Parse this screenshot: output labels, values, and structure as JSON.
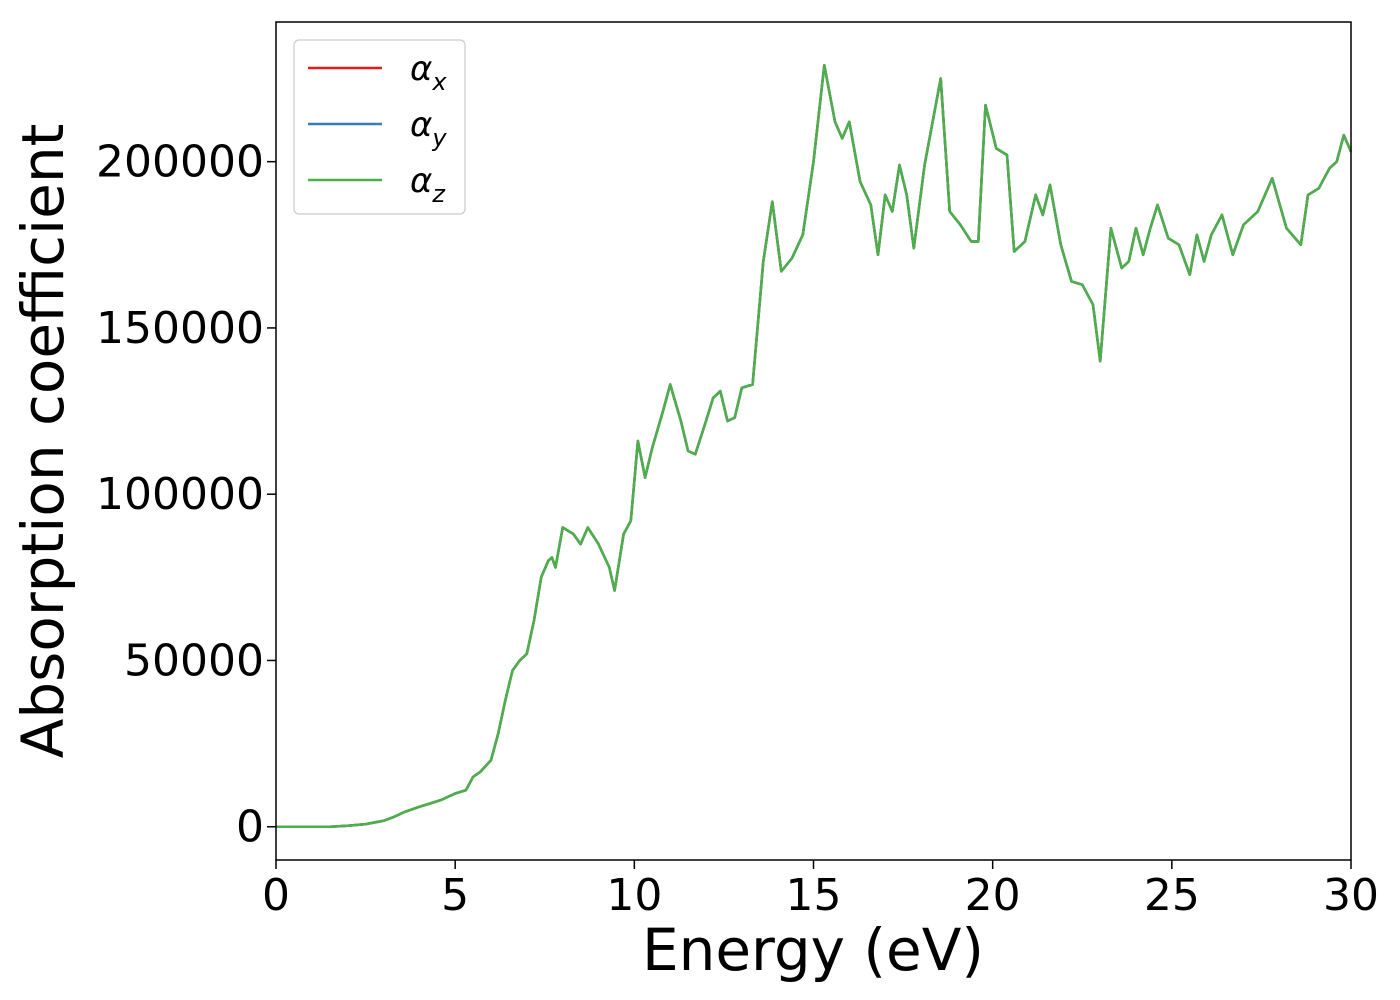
{
  "chart_data": {
    "type": "line",
    "title": "",
    "xlabel": "Energy (eV)",
    "ylabel": "Absorption coefficient",
    "xlim": [
      0,
      30
    ],
    "ylim": [
      -10000,
      242000
    ],
    "xticks": [
      0,
      5,
      10,
      15,
      20,
      25,
      30
    ],
    "yticks": [
      0,
      50000,
      100000,
      150000,
      200000
    ],
    "grid": false,
    "legend_position": "top-left",
    "series": [
      {
        "name": "α",
        "subscript": "x",
        "color": "#e41a1c"
      },
      {
        "name": "α",
        "subscript": "y",
        "color": "#377eb8"
      },
      {
        "name": "α",
        "subscript": "z",
        "color": "#4daf4a"
      }
    ],
    "x": [
      0,
      0.5,
      1,
      1.5,
      2,
      2.5,
      3,
      3.3,
      3.6,
      4,
      4.3,
      4.6,
      5,
      5.3,
      5.5,
      5.7,
      6,
      6.2,
      6.4,
      6.6,
      6.8,
      6.9,
      7,
      7.2,
      7.4,
      7.6,
      7.7,
      7.8,
      8,
      8.3,
      8.5,
      8.7,
      9,
      9.3,
      9.45,
      9.7,
      9.9,
      10.1,
      10.3,
      10.5,
      10.8,
      11,
      11.3,
      11.5,
      11.7,
      12,
      12.2,
      12.4,
      12.6,
      12.8,
      13,
      13.3,
      13.6,
      13.85,
      14.1,
      14.4,
      14.7,
      15,
      15.3,
      15.6,
      15.8,
      16,
      16.3,
      16.6,
      16.8,
      17,
      17.2,
      17.4,
      17.6,
      17.8,
      18.1,
      18.55,
      18.8,
      19.1,
      19.4,
      19.6,
      19.8,
      20.1,
      20.4,
      20.6,
      20.9,
      21.2,
      21.4,
      21.6,
      21.9,
      22.2,
      22.5,
      22.8,
      23,
      23.3,
      23.6,
      23.8,
      24,
      24.2,
      24.4,
      24.6,
      24.9,
      25.2,
      25.5,
      25.7,
      25.9,
      26.1,
      26.4,
      26.7,
      27,
      27.4,
      27.8,
      28.2,
      28.6,
      28.8,
      29.1,
      29.4,
      29.6,
      29.8,
      30
    ],
    "y": [
      0,
      0,
      0,
      0,
      300,
      800,
      1800,
      3000,
      4500,
      6000,
      7000,
      8000,
      10000,
      11000,
      15000,
      16500,
      20000,
      28000,
      38000,
      47000,
      50000,
      51000,
      52000,
      62000,
      75000,
      80000,
      81000,
      78000,
      90000,
      88000,
      85000,
      90000,
      85000,
      78000,
      71000,
      88000,
      92000,
      116000,
      105000,
      114000,
      125000,
      133000,
      122000,
      113000,
      112000,
      122000,
      129000,
      131000,
      122000,
      123000,
      132000,
      133000,
      170000,
      188000,
      167000,
      171000,
      178000,
      200000,
      229000,
      212000,
      207000,
      212000,
      194000,
      187000,
      172000,
      190000,
      185000,
      199000,
      190000,
      174000,
      199000,
      225000,
      185000,
      181000,
      176000,
      176000,
      217000,
      204000,
      202000,
      173000,
      176000,
      190000,
      184000,
      193000,
      175000,
      164000,
      163000,
      157000,
      140000,
      180000,
      168000,
      170000,
      180000,
      172000,
      180000,
      187000,
      177000,
      175000,
      166000,
      178000,
      170000,
      178000,
      184000,
      172000,
      181000,
      185000,
      195000,
      180000,
      175000,
      190000,
      192000,
      198000,
      200000,
      208000,
      203000
    ]
  }
}
